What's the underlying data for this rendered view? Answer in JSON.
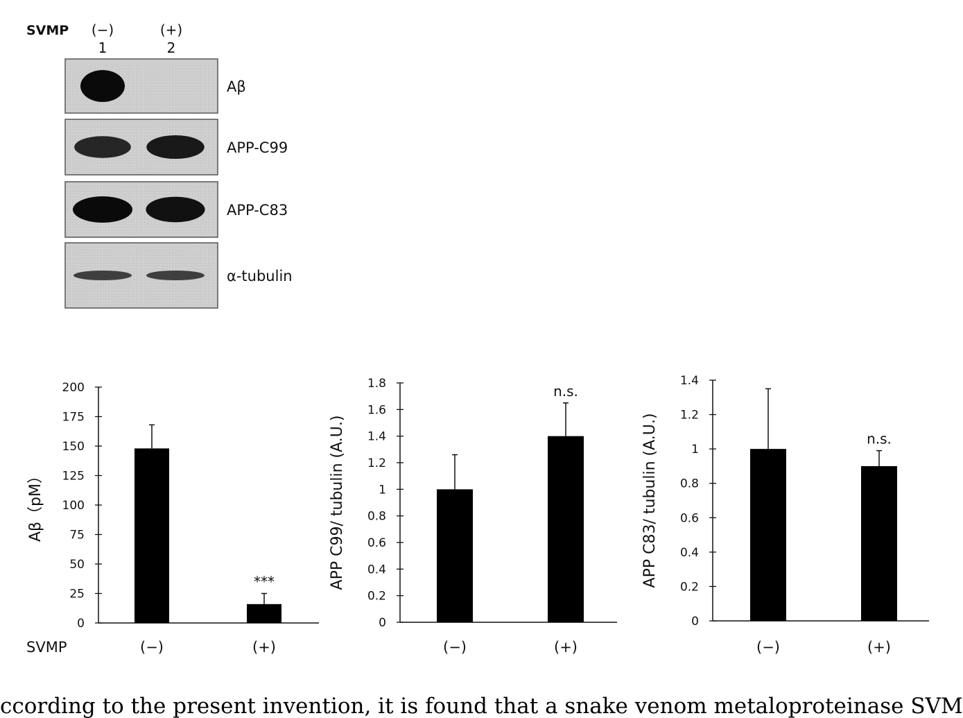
{
  "blot": {
    "treatment_label": "SVMP",
    "lanes": [
      {
        "sign": "(−)",
        "number": "1"
      },
      {
        "sign": "(+)",
        "number": "2"
      }
    ],
    "rows": [
      {
        "label": "Aβ",
        "lane_intensity": [
          1.0,
          0.0
        ]
      },
      {
        "label": "APP-C99",
        "lane_intensity": [
          0.75,
          0.85
        ]
      },
      {
        "label": "APP-C83",
        "lane_intensity": [
          1.0,
          0.95
        ]
      },
      {
        "label": "α-tubulin",
        "lane_intensity": [
          0.5,
          0.5
        ]
      }
    ],
    "colors": {
      "membrane": "#c9c9c9",
      "band": "#0a0a0a",
      "border": "#555555"
    }
  },
  "chart_data": [
    {
      "type": "bar",
      "ylabel": "Aβ（pM）",
      "row_label": "SVMP",
      "categories": [
        "(−)",
        "(+)"
      ],
      "values": [
        148,
        16
      ],
      "errors": [
        20,
        9
      ],
      "annotations": [
        "",
        "***"
      ],
      "ylim": [
        0,
        200
      ],
      "yticks": [
        0,
        25,
        50,
        75,
        100,
        125,
        150,
        175,
        200
      ],
      "ytick_labels": [
        "0",
        "25",
        "50",
        "75",
        "100",
        "125",
        "150",
        "175",
        "200"
      ]
    },
    {
      "type": "bar",
      "ylabel": "APP C99/ tubulin (A.U.)",
      "categories": [
        "(−)",
        "(+)"
      ],
      "values": [
        1.0,
        1.4
      ],
      "errors": [
        0.26,
        0.25
      ],
      "annotations": [
        "",
        "n.s."
      ],
      "ylim": [
        0,
        1.8
      ],
      "yticks": [
        0,
        0.2,
        0.4,
        0.6,
        0.8,
        1,
        1.2,
        1.4,
        1.6,
        1.8
      ],
      "ytick_labels": [
        "0",
        "0.2",
        "0.4",
        "0.6",
        "0.8",
        "1",
        "1.2",
        "1.4",
        "1.6",
        "1.8"
      ]
    },
    {
      "type": "bar",
      "ylabel": "APP C83/ tubulin (A.U.)",
      "categories": [
        "(−)",
        "(+)"
      ],
      "values": [
        1.0,
        0.9
      ],
      "errors": [
        0.35,
        0.09
      ],
      "annotations": [
        "",
        "n.s."
      ],
      "ylim": [
        0,
        1.4
      ],
      "yticks": [
        0,
        0.2,
        0.4,
        0.6,
        0.8,
        1,
        1.2,
        1.4
      ],
      "ytick_labels": [
        "0",
        "0.2",
        "0.4",
        "0.6",
        "0.8",
        "1",
        "1.2",
        "1.4"
      ]
    }
  ],
  "caption": "ccording to the present invention, it is found that a snake venom metaloproteinase SVMP"
}
